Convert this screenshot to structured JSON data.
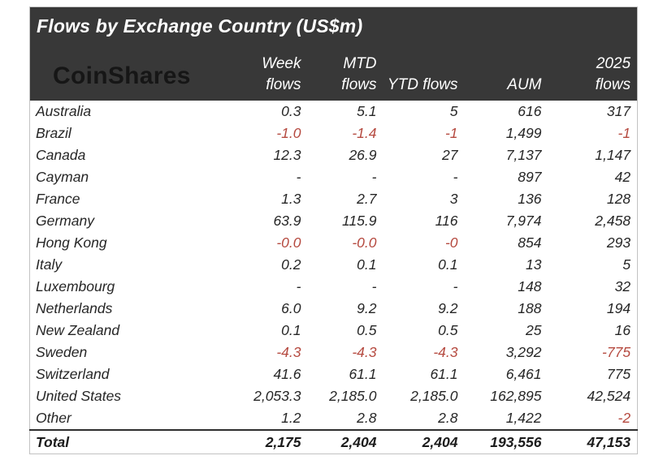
{
  "page": {
    "title": "Flows by Exchange Country (US$m)",
    "brand": "CoinShares"
  },
  "colors": {
    "header_bg": "#383838",
    "header_text": "#ffffff",
    "logo_text": "#161616",
    "body_text": "#262626",
    "negative": "#b5493f"
  },
  "chart_data": {
    "type": "table",
    "title": "Flows by Exchange Country (US$m)",
    "col_headers": {
      "week": "Week\nflows",
      "mtd": "MTD\nflows",
      "ytd": "YTD flows",
      "aum": "AUM",
      "y2025": "2025\nflows"
    },
    "rows": [
      {
        "country": "Australia",
        "week": "0.3",
        "mtd": "5.1",
        "ytd": "5",
        "aum": "616",
        "y2025": "317"
      },
      {
        "country": "Brazil",
        "week": "-1.0",
        "mtd": "-1.4",
        "ytd": "-1",
        "aum": "1,499",
        "y2025": "-1"
      },
      {
        "country": "Canada",
        "week": "12.3",
        "mtd": "26.9",
        "ytd": "27",
        "aum": "7,137",
        "y2025": "1,147"
      },
      {
        "country": "Cayman",
        "week": "-",
        "mtd": "-",
        "ytd": "-",
        "aum": "897",
        "y2025": "42"
      },
      {
        "country": "France",
        "week": "1.3",
        "mtd": "2.7",
        "ytd": "3",
        "aum": "136",
        "y2025": "128"
      },
      {
        "country": "Germany",
        "week": "63.9",
        "mtd": "115.9",
        "ytd": "116",
        "aum": "7,974",
        "y2025": "2,458"
      },
      {
        "country": "Hong Kong",
        "week": "-0.0",
        "mtd": "-0.0",
        "ytd": "-0",
        "aum": "854",
        "y2025": "293"
      },
      {
        "country": "Italy",
        "week": "0.2",
        "mtd": "0.1",
        "ytd": "0.1",
        "aum": "13",
        "y2025": "5"
      },
      {
        "country": "Luxembourg",
        "week": "-",
        "mtd": "-",
        "ytd": "-",
        "aum": "148",
        "y2025": "32"
      },
      {
        "country": "Netherlands",
        "week": "6.0",
        "mtd": "9.2",
        "ytd": "9.2",
        "aum": "188",
        "y2025": "194"
      },
      {
        "country": "New Zealand",
        "week": "0.1",
        "mtd": "0.5",
        "ytd": "0.5",
        "aum": "25",
        "y2025": "16"
      },
      {
        "country": "Sweden",
        "week": "-4.3",
        "mtd": "-4.3",
        "ytd": "-4.3",
        "aum": "3,292",
        "y2025": "-775"
      },
      {
        "country": "Switzerland",
        "week": "41.6",
        "mtd": "61.1",
        "ytd": "61.1",
        "aum": "6,461",
        "y2025": "775"
      },
      {
        "country": "United States",
        "week": "2,053.3",
        "mtd": "2,185.0",
        "ytd": "2,185.0",
        "aum": "162,895",
        "y2025": "42,524"
      },
      {
        "country": "Other",
        "week": "1.2",
        "mtd": "2.8",
        "ytd": "2.8",
        "aum": "1,422",
        "y2025": "-2"
      }
    ],
    "total": {
      "label": "Total",
      "week": "2,175",
      "mtd": "2,404",
      "ytd": "2,404",
      "aum": "193,556",
      "y2025": "47,153"
    }
  }
}
